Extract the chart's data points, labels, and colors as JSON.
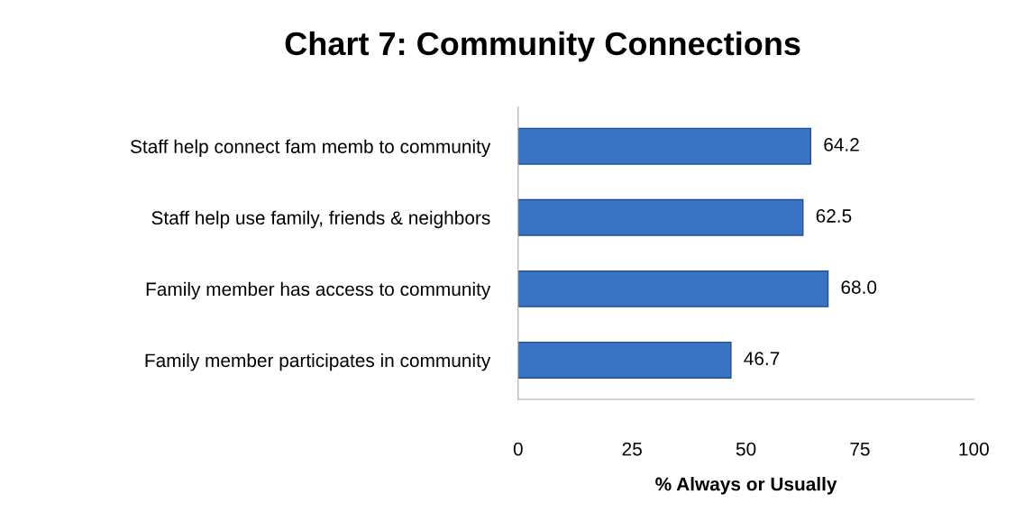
{
  "chart_data": {
    "type": "bar",
    "orientation": "horizontal",
    "title": "Chart 7: Community Connections",
    "xlabel": "% Always or Usually",
    "categories": [
      "Staff help connect fam memb to community",
      "Staff help use family, friends & neighbors",
      "Family member has access to community",
      "Family member participates in community"
    ],
    "values": [
      64.2,
      62.5,
      68.0,
      46.7
    ],
    "value_labels": [
      "64.2",
      "62.5",
      "68.0",
      "46.7"
    ],
    "color": "#3a72c4",
    "xlim": [
      0,
      100
    ],
    "xticks": [
      0,
      25,
      50,
      75,
      100
    ],
    "grid": false,
    "legend": false
  }
}
